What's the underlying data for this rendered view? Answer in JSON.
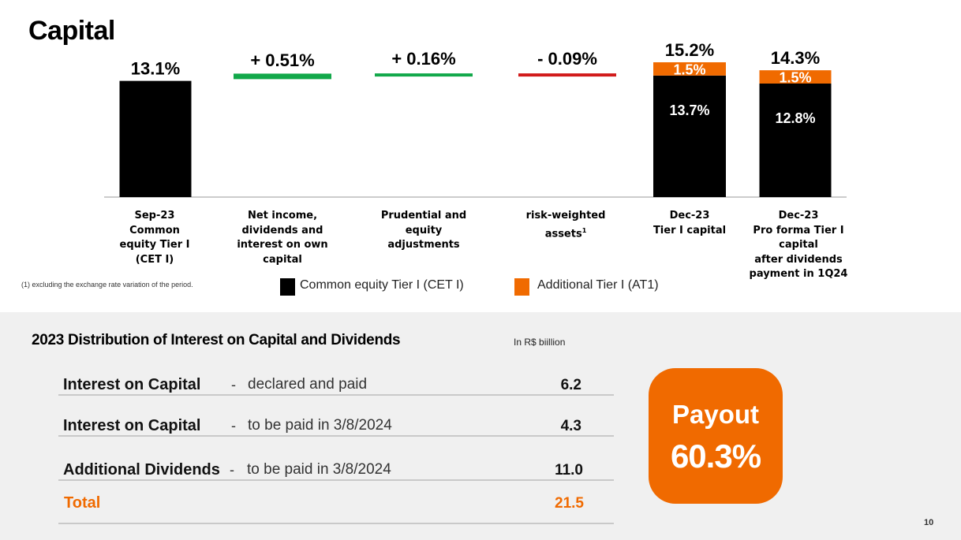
{
  "page": {
    "title": "Capital",
    "page_number": "10"
  },
  "colors": {
    "cet1": "#000000",
    "at1": "#f06a00",
    "positive": "#12a84a",
    "negative": "#d11a1a",
    "total": "#f06a00"
  },
  "chart_data": {
    "type": "bar",
    "subtype": "waterfall",
    "unit": "%",
    "categories": [
      "Sep-23\nCommon\nequity Tier I\n(CET I)",
      "Net income,\ndividends and\ninterest on own\ncapital",
      "Prudential and\nequity\nadjustments",
      "risk-weighted\nassets",
      "Dec-23\nTier I capital",
      "Dec-23\nPro forma Tier I\ncapital\nafter dividends\npayment in 1Q24"
    ],
    "footnote_marker": "1",
    "series": [
      {
        "name": "Common equity Tier I (CET I)",
        "values": [
          13.1,
          null,
          null,
          null,
          13.7,
          12.8
        ]
      },
      {
        "name": "Additional Tier I (AT1)",
        "values": [
          null,
          null,
          null,
          null,
          1.5,
          1.5
        ]
      }
    ],
    "changes": [
      {
        "value": 0.51,
        "label": "+ 0.51%"
      },
      {
        "value": 0.16,
        "label": "+ 0.16%"
      },
      {
        "value": -0.09,
        "label": "- 0.09%"
      }
    ],
    "total_labels": [
      "13.1%",
      "",
      "",
      "",
      "15.2%",
      "14.3%"
    ],
    "segment_labels": {
      "cet1": [
        "",
        "",
        "",
        "",
        "13.7%",
        "12.8%"
      ],
      "at1": [
        "",
        "",
        "",
        "",
        "1.5%",
        "1.5%"
      ]
    },
    "legend": [
      "Common equity Tier I (CET I)",
      "Additional Tier I (AT1)"
    ],
    "grid": false
  },
  "footnote": "(1) excluding the exchange rate variation of the period.",
  "distribution": {
    "title": "2023 Distribution of Interest on Capital and Dividends",
    "unit_note": "In R$ biillion",
    "rows": [
      {
        "label": "Interest on Capital",
        "dash": "-",
        "desc": "declared and paid",
        "value": "6.2"
      },
      {
        "label": "Interest on Capital",
        "dash": "-",
        "desc": "to be paid in 3/8/2024",
        "value": "4.3"
      },
      {
        "label": "Additional Dividends",
        "dash": "-",
        "desc": "to be paid in 3/8/2024",
        "value": "11.0"
      }
    ],
    "total": {
      "label": "Total",
      "value": "21.5"
    }
  },
  "payout": {
    "title": "Payout",
    "value": "60.3%"
  }
}
